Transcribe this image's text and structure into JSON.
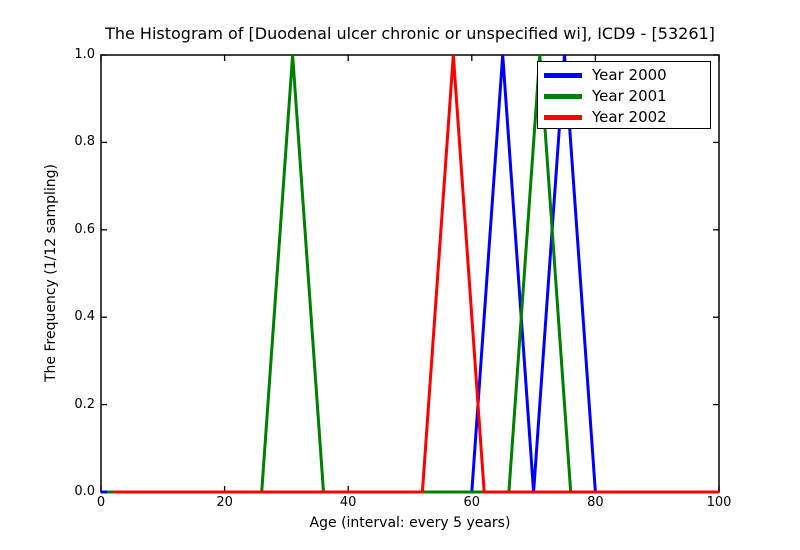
{
  "chart_data": {
    "type": "line",
    "title": "The Histogram of [Duodenal ulcer chronic or unspecified wi], ICD9 - [53261]",
    "xlabel": "Age (interval: every 5 years)",
    "ylabel": "The Frequency (1/12 sampling)",
    "xlim": [
      0,
      100
    ],
    "ylim": [
      0.0,
      1.0
    ],
    "xticks": [
      "0",
      "20",
      "40",
      "60",
      "80",
      "100"
    ],
    "yticks": [
      "0.0",
      "0.2",
      "0.4",
      "0.6",
      "0.8",
      "1.0"
    ],
    "grid": false,
    "legend_position": "upper right",
    "series": [
      {
        "name": "Year 2000",
        "color": "#0000ff",
        "points": [
          [
            0,
            0
          ],
          [
            55,
            0
          ],
          [
            60,
            0
          ],
          [
            65,
            1
          ],
          [
            70,
            0
          ],
          [
            75,
            1
          ],
          [
            80,
            0
          ],
          [
            85,
            0
          ],
          [
            100,
            0
          ]
        ]
      },
      {
        "name": "Year 2001",
        "color": "#008000",
        "points": [
          [
            1,
            0
          ],
          [
            21,
            0
          ],
          [
            26,
            0
          ],
          [
            31,
            1
          ],
          [
            36,
            0
          ],
          [
            41,
            0
          ],
          [
            61,
            0
          ],
          [
            66,
            0
          ],
          [
            71,
            1
          ],
          [
            76,
            0
          ],
          [
            81,
            0
          ],
          [
            100,
            0
          ]
        ]
      },
      {
        "name": "Year 2002",
        "color": "#ff0000",
        "points": [
          [
            2,
            0
          ],
          [
            47,
            0
          ],
          [
            52,
            0
          ],
          [
            57,
            1
          ],
          [
            62,
            0
          ],
          [
            67,
            0
          ],
          [
            100,
            0
          ]
        ]
      }
    ]
  }
}
